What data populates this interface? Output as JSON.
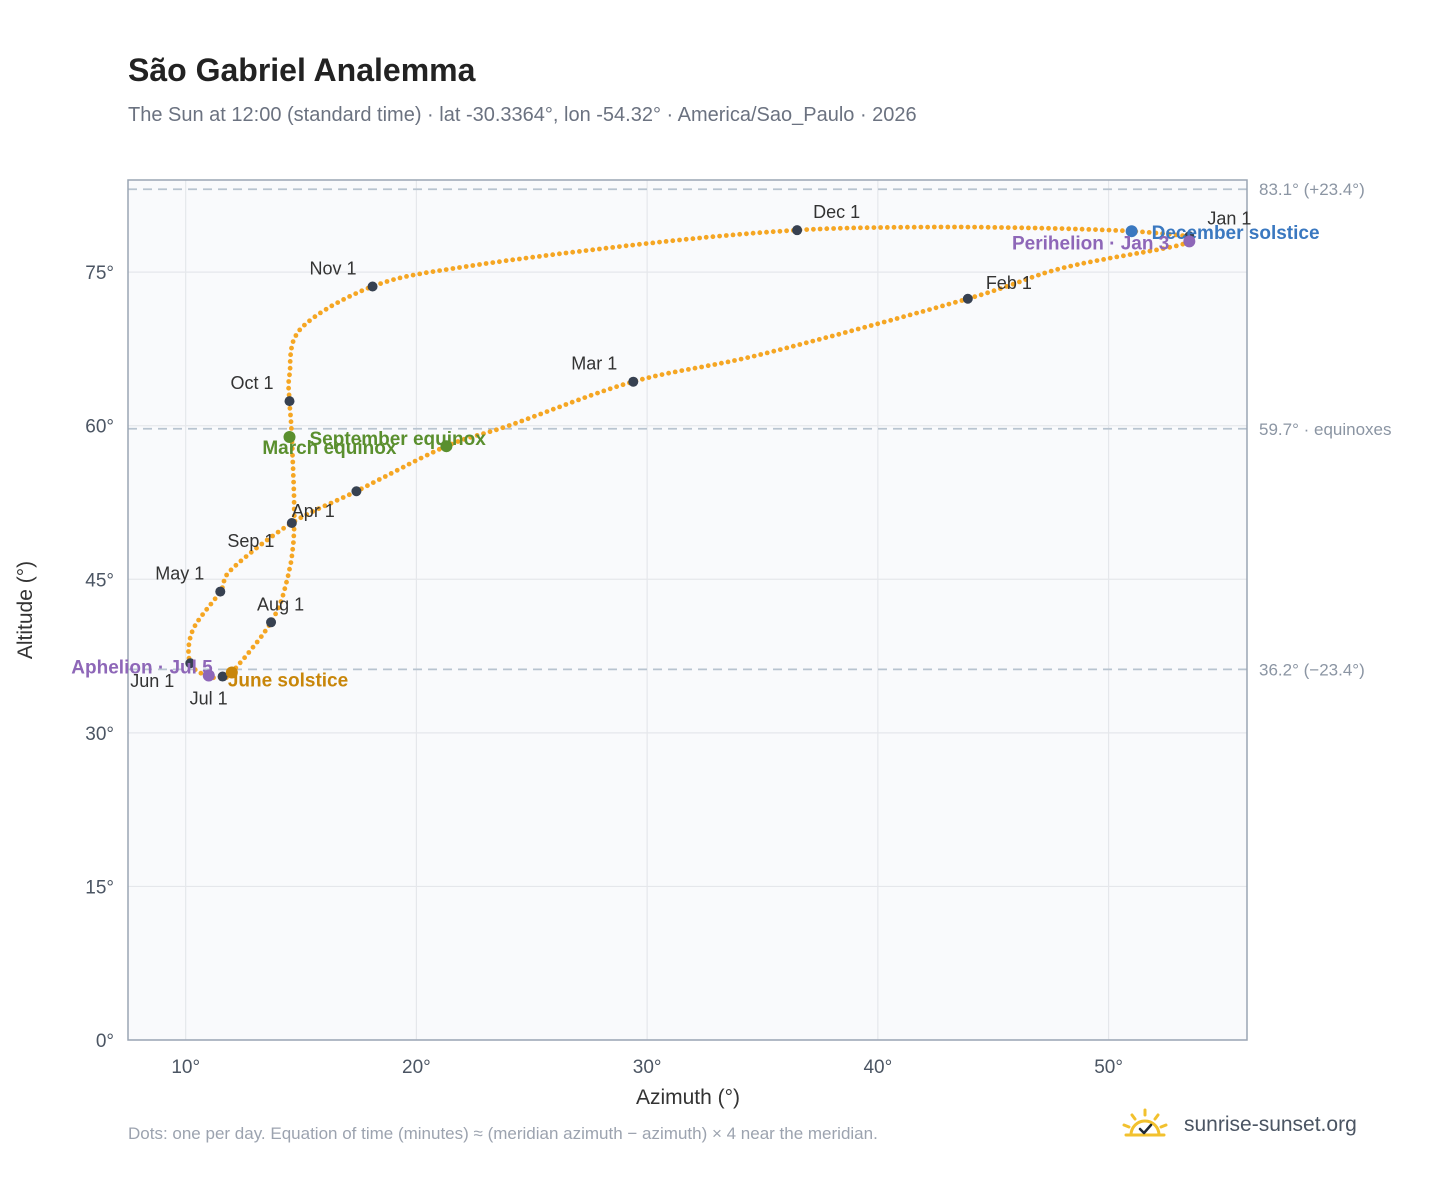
{
  "title": "São Gabriel Analemma",
  "subtitle": "The Sun at 12:00 (standard time) · lat -30.3364°, lon -54.32° · America/Sao_Paulo · 2026",
  "footnote": "Dots: one per day. Equation of time (minutes) ≈ (meridian azimuth − azimuth) × 4 near the meridian.",
  "brand": {
    "text": "sunrise-sunset.org",
    "logo_icon": "sun-check-icon"
  },
  "colors": {
    "curve": "#f5a623",
    "month_dot": "#374151",
    "equinox": "#5a8f2e",
    "june_solstice": "#c8860a",
    "december_solstice": "#3a78c0",
    "apsides": "#8e67b8",
    "reference_line": "#b8c4d0",
    "plot_background": "#f9fafc",
    "axis_frame": "#9aa5b4"
  },
  "chart_data": {
    "type": "scatter",
    "xlabel": "Azimuth (°)",
    "ylabel": "Altitude (°)",
    "xlim": [
      7.5,
      56
    ],
    "ylim": [
      0,
      84
    ],
    "xticks": [
      10,
      20,
      30,
      40,
      50
    ],
    "xtick_labels": [
      "10°",
      "20°",
      "30°",
      "40°",
      "50°"
    ],
    "yticks": [
      0,
      15,
      30,
      45,
      60,
      75
    ],
    "ytick_labels": [
      "0°",
      "15°",
      "30°",
      "45°",
      "60°",
      "75°"
    ],
    "grid": true,
    "reference_lines": [
      {
        "altitude": 83.1,
        "label": "83.1° (+23.4°)"
      },
      {
        "altitude": 59.7,
        "label": "59.7° · equinoxes"
      },
      {
        "altitude": 36.2,
        "label": "36.2° (−23.4°)"
      }
    ],
    "series": [
      {
        "points_per": "day",
        "keypoints": [
          [
            53.5,
            78.5
          ],
          [
            53.0,
            77.6
          ],
          [
            48.0,
            75.4
          ],
          [
            43.9,
            72.4
          ],
          [
            35.0,
            67.0
          ],
          [
            29.4,
            64.3
          ],
          [
            24.0,
            60.0
          ],
          [
            21.3,
            58.0
          ],
          [
            17.4,
            53.6
          ],
          [
            14.6,
            50.5
          ],
          [
            12.0,
            46.0
          ],
          [
            11.5,
            43.8
          ],
          [
            10.3,
            40.0
          ],
          [
            10.2,
            36.8
          ],
          [
            11.0,
            35.5
          ],
          [
            11.6,
            35.5
          ],
          [
            12.0,
            35.9
          ],
          [
            13.7,
            40.8
          ],
          [
            14.4,
            45.0
          ],
          [
            14.7,
            50.0
          ],
          [
            14.6,
            58.9
          ],
          [
            14.5,
            62.4
          ],
          [
            14.5,
            65.0
          ],
          [
            15.0,
            69.5
          ],
          [
            18.1,
            73.6
          ],
          [
            22.0,
            75.5
          ],
          [
            30.0,
            77.8
          ],
          [
            36.5,
            79.1
          ],
          [
            42.0,
            79.4
          ],
          [
            47.0,
            79.3
          ],
          [
            51.0,
            79.0
          ],
          [
            53.5,
            78.5
          ]
        ]
      }
    ],
    "month_markers": [
      {
        "label": "Jan 1",
        "az": 53.5,
        "alt": 78.5
      },
      {
        "label": "Feb 1",
        "az": 43.9,
        "alt": 72.4
      },
      {
        "label": "Mar 1",
        "az": 29.4,
        "alt": 64.3
      },
      {
        "label": "Apr 1",
        "az": 14.6,
        "alt": 50.5
      },
      {
        "label": "May 1",
        "az": 11.5,
        "alt": 43.8
      },
      {
        "label": "Jun 1",
        "az": 10.2,
        "alt": 36.8
      },
      {
        "label": "Jul 1",
        "az": 11.6,
        "alt": 35.5
      },
      {
        "label": "Aug 1",
        "az": 13.7,
        "alt": 40.8
      },
      {
        "label": "Sep 1",
        "az": 17.4,
        "alt": 53.6
      },
      {
        "label": "Oct 1",
        "az": 14.5,
        "alt": 62.4
      },
      {
        "label": "Nov 1",
        "az": 18.1,
        "alt": 73.6
      },
      {
        "label": "Dec 1",
        "az": 36.5,
        "alt": 79.1
      }
    ],
    "events": [
      {
        "label": "March equinox",
        "az": 21.3,
        "alt": 58.0,
        "color": "#5a8f2e"
      },
      {
        "label": "September equinox",
        "az": 14.5,
        "alt": 58.9,
        "color": "#5a8f2e"
      },
      {
        "label": "June solstice",
        "az": 12.0,
        "alt": 35.9,
        "color": "#c8860a"
      },
      {
        "label": "December solstice",
        "az": 51.0,
        "alt": 79.0,
        "color": "#3a78c0"
      },
      {
        "label": "Perihelion · Jan 3",
        "az": 53.5,
        "alt": 78.0,
        "color": "#8e67b8"
      },
      {
        "label": "Aphelion · Jul 5",
        "az": 11.0,
        "alt": 35.6,
        "color": "#8e67b8"
      }
    ]
  }
}
